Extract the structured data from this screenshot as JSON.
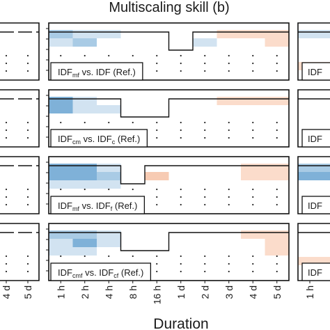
{
  "chart_data": {
    "type": "heatmap",
    "title": "Multiscaling skill (b)",
    "xlabel": "Duration",
    "durations": [
      "1 h",
      "2 h",
      "4 h",
      "8 h",
      "16 h",
      "1 d",
      "2 d",
      "3 d",
      "4 d",
      "5 d"
    ],
    "left_edge_ticks": [
      "4 d",
      "5 d"
    ],
    "right_edge_ticks": [
      "1 h"
    ],
    "colors": {
      "blue_dark": "#7fb1d8",
      "blue_mid": "#a9cbe5",
      "blue_light": "#d2e3f1",
      "orange_light": "#fbdccb",
      "orange_mid": "#f7cbb3"
    },
    "panels": [
      {
        "label": "IDF_mf vs. IDF (Ref.)",
        "label_parts": {
          "a": "IDF",
          "a_sub": "mf",
          "mid": "vs. IDF",
          "b_sub": "",
          "end": "(Ref.)"
        },
        "step": [
          1,
          1,
          1,
          1,
          1,
          0,
          1,
          1,
          1,
          1
        ],
        "cells": [
          {
            "row": 0,
            "col": 0,
            "span": 1,
            "c": "blue_mid"
          },
          {
            "row": 0,
            "col": 1,
            "span": 1,
            "c": "blue_light"
          },
          {
            "row": 0,
            "col": 2,
            "span": 1,
            "c": "blue_light"
          },
          {
            "row": 0,
            "col": 7,
            "span": 1,
            "c": "orange_light"
          },
          {
            "row": 0,
            "col": 8,
            "span": 1,
            "c": "orange_light"
          },
          {
            "row": 0,
            "col": 9,
            "span": 1,
            "c": "orange_light"
          },
          {
            "row": 1,
            "col": 0,
            "span": 1,
            "c": "blue_light"
          },
          {
            "row": 1,
            "col": 1,
            "span": 1,
            "c": "blue_mid"
          },
          {
            "row": 1,
            "col": 6,
            "span": 1,
            "c": "blue_light"
          },
          {
            "row": 1,
            "col": 9,
            "span": 1,
            "c": "orange_light"
          }
        ]
      },
      {
        "label": "IDF_cm vs. IDF_c (Ref.)",
        "label_parts": {
          "a": "IDF",
          "a_sub": "cm",
          "mid": "vs. IDF",
          "b_sub": "c",
          "end": "(Ref.)"
        },
        "step": [
          1,
          1,
          1,
          0,
          0,
          1,
          1,
          1,
          1,
          1
        ],
        "cells": [
          {
            "row": 0,
            "col": 0,
            "span": 1,
            "c": "blue_dark"
          },
          {
            "row": 0,
            "col": 1,
            "span": 1,
            "c": "blue_light"
          },
          {
            "row": 0,
            "col": 7,
            "span": 1,
            "c": "orange_light"
          },
          {
            "row": 0,
            "col": 8,
            "span": 1,
            "c": "orange_light"
          },
          {
            "row": 0,
            "col": 9,
            "span": 1,
            "c": "orange_light"
          },
          {
            "row": 1,
            "col": 0,
            "span": 1,
            "c": "blue_dark"
          },
          {
            "row": 1,
            "col": 1,
            "span": 1,
            "c": "blue_light"
          },
          {
            "row": 1,
            "col": 2,
            "span": 1,
            "c": "blue_light"
          }
        ]
      },
      {
        "label": "IDF_mf vs. IDF_f (Ref.)",
        "label_parts": {
          "a": "IDF",
          "a_sub": "mf",
          "mid": "vs. IDF",
          "b_sub": "f",
          "end": "(Ref.)"
        },
        "step": [
          1,
          1,
          1,
          0,
          1,
          1,
          1,
          1,
          1,
          1
        ],
        "cells": [
          {
            "row": 0,
            "col": 0,
            "span": 1,
            "c": "blue_dark"
          },
          {
            "row": 0,
            "col": 1,
            "span": 1,
            "c": "blue_dark"
          },
          {
            "row": 0,
            "col": 2,
            "span": 1,
            "c": "blue_light"
          },
          {
            "row": 0,
            "col": 8,
            "span": 1,
            "c": "orange_light"
          },
          {
            "row": 0,
            "col": 9,
            "span": 1,
            "c": "orange_light"
          },
          {
            "row": 1,
            "col": 0,
            "span": 1,
            "c": "blue_dark"
          },
          {
            "row": 1,
            "col": 1,
            "span": 1,
            "c": "blue_dark"
          },
          {
            "row": 1,
            "col": 2,
            "span": 1,
            "c": "blue_mid"
          },
          {
            "row": 1,
            "col": 4,
            "span": 1,
            "c": "orange_mid"
          },
          {
            "row": 1,
            "col": 8,
            "span": 1,
            "c": "orange_light"
          },
          {
            "row": 1,
            "col": 9,
            "span": 1,
            "c": "orange_light"
          },
          {
            "row": 2,
            "col": 0,
            "span": 1,
            "c": "blue_light"
          },
          {
            "row": 2,
            "col": 1,
            "span": 1,
            "c": "blue_light"
          },
          {
            "row": 2,
            "col": 2,
            "span": 1,
            "c": "blue_light"
          }
        ]
      },
      {
        "label": "IDF_cmf vs. IDF_cf (Ref.)",
        "label_parts": {
          "a": "IDF",
          "a_sub": "cmf",
          "mid": "vs. IDF",
          "b_sub": "cf",
          "end": "(Ref.)"
        },
        "step": [
          1,
          1,
          1,
          0,
          0,
          1,
          1,
          1,
          1,
          1
        ],
        "cells": [
          {
            "row": 0,
            "col": 0,
            "span": 1,
            "c": "blue_mid"
          },
          {
            "row": 0,
            "col": 1,
            "span": 1,
            "c": "blue_mid"
          },
          {
            "row": 0,
            "col": 2,
            "span": 1,
            "c": "blue_light"
          },
          {
            "row": 0,
            "col": 8,
            "span": 1,
            "c": "orange_light"
          },
          {
            "row": 0,
            "col": 9,
            "span": 1,
            "c": "orange_light"
          },
          {
            "row": 1,
            "col": 0,
            "span": 1,
            "c": "blue_light"
          },
          {
            "row": 1,
            "col": 1,
            "span": 1,
            "c": "blue_dark"
          },
          {
            "row": 1,
            "col": 2,
            "span": 1,
            "c": "blue_light"
          },
          {
            "row": 1,
            "col": 9,
            "span": 1,
            "c": "orange_light"
          },
          {
            "row": 2,
            "col": 0,
            "span": 1,
            "c": "blue_light"
          },
          {
            "row": 2,
            "col": 1,
            "span": 1,
            "c": "blue_light"
          },
          {
            "row": 2,
            "col": 9,
            "span": 1,
            "c": "orange_light"
          }
        ]
      }
    ]
  }
}
